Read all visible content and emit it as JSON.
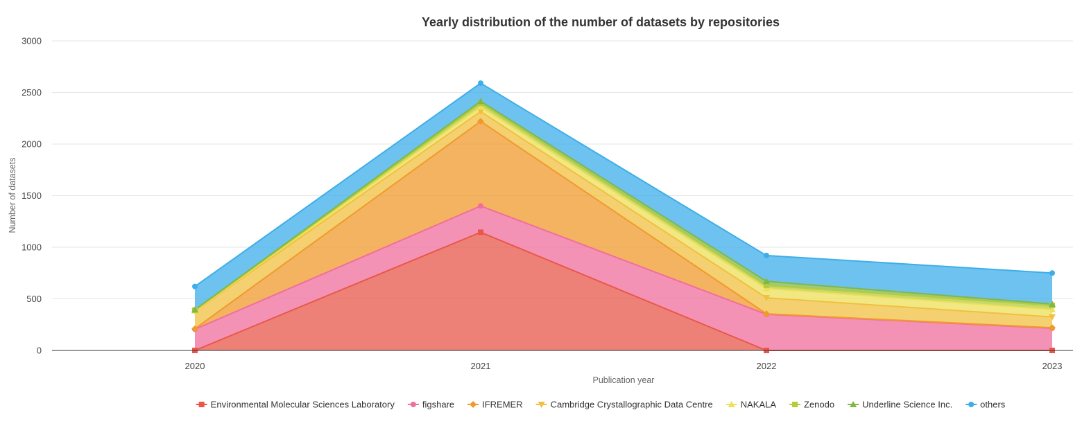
{
  "chart_data": {
    "type": "area",
    "stacked": true,
    "title": "Yearly distribution of the number of datasets by repositories",
    "xlabel": "Publication year",
    "ylabel": "Number of datasets",
    "categories": [
      "2020",
      "2021",
      "2022",
      "2023"
    ],
    "ylim": [
      0,
      3000
    ],
    "yticks": [
      0,
      500,
      1000,
      1500,
      2000,
      2500,
      3000
    ],
    "grid": true,
    "legend_position": "bottom",
    "series": [
      {
        "name": "Environmental Molecular Sciences Laboratory",
        "color": "#e8574a",
        "marker": "square",
        "values": [
          0,
          1145,
          0,
          0
        ]
      },
      {
        "name": "figshare",
        "color": "#f06e9c",
        "marker": "circle",
        "values": [
          205,
          255,
          350,
          215
        ]
      },
      {
        "name": "IFREMER",
        "color": "#f09a2c",
        "marker": "diamond",
        "values": [
          5,
          820,
          5,
          5
        ]
      },
      {
        "name": "Cambridge Crystallographic Data Centre",
        "color": "#f0c040",
        "marker": "triangle-down",
        "values": [
          170,
          95,
          155,
          105
        ]
      },
      {
        "name": "NAKALA",
        "color": "#ede05a",
        "marker": "triangle",
        "values": [
          5,
          45,
          90,
          70
        ]
      },
      {
        "name": "Zenodo",
        "color": "#b5cc3a",
        "marker": "square",
        "values": [
          5,
          35,
          30,
          40
        ]
      },
      {
        "name": "Underline Science Inc.",
        "color": "#80b848",
        "marker": "triangle",
        "values": [
          5,
          20,
          40,
          15
        ]
      },
      {
        "name": "others",
        "color": "#3daee9",
        "marker": "circle",
        "values": [
          225,
          175,
          250,
          300
        ]
      }
    ]
  }
}
